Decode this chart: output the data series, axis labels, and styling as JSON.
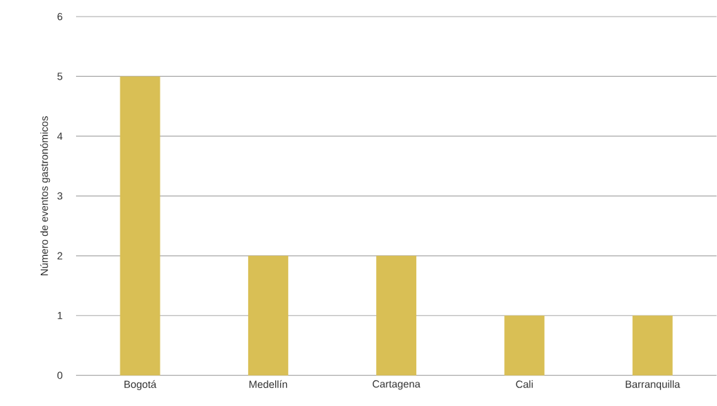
{
  "chart_data": {
    "type": "bar",
    "ylabel": "Número de eventos gastronómicos",
    "categories": [
      "Bogotá",
      "Medellín",
      "Cartagena",
      "Cali",
      "Barranquilla"
    ],
    "values": [
      5,
      2,
      2,
      1,
      1
    ],
    "color": "#d9bf55",
    "ylim": [
      0,
      6
    ],
    "yticks": [
      0,
      1,
      2,
      3,
      4,
      5,
      6
    ],
    "grid": "y"
  }
}
